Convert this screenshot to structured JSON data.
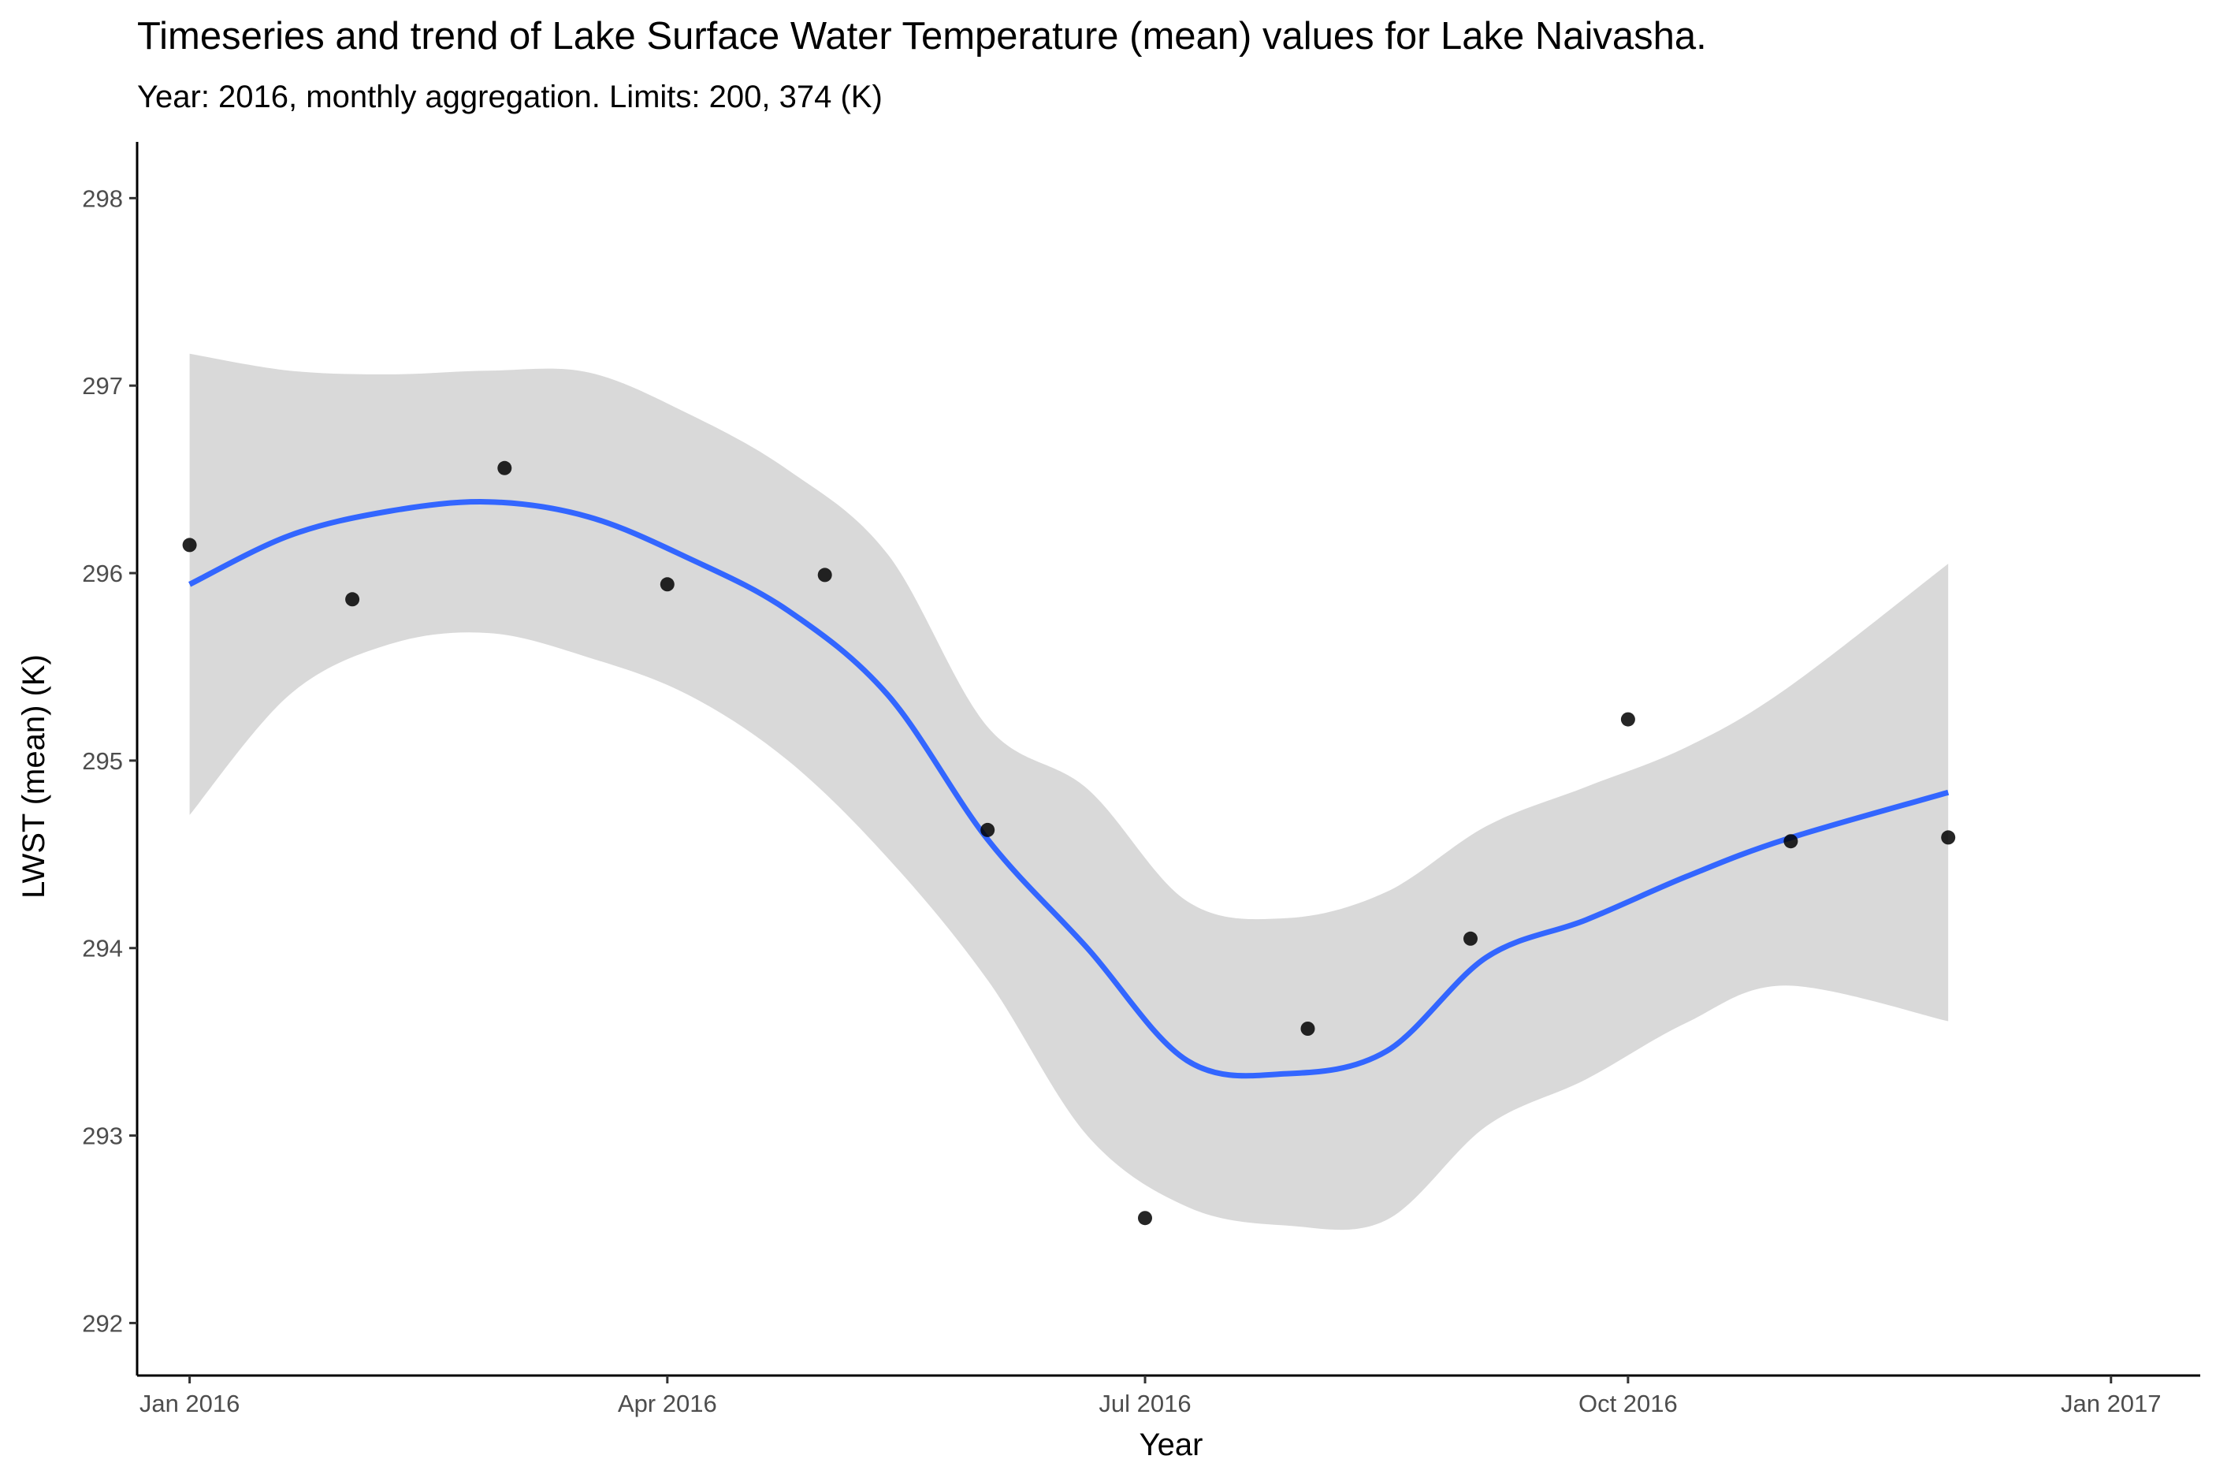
{
  "chart_data": {
    "type": "scatter",
    "title": "Timeseries and trend of Lake Surface Water Temperature (mean) values for Lake Naivasha.",
    "subtitle": "Year: 2016, monthly aggregation. Limits: 200, 374 (K)",
    "xlabel": "Year",
    "ylabel": "LWST (mean) (K)",
    "x_ticks": [
      {
        "date": "2016-01-01",
        "label": "Jan 2016"
      },
      {
        "date": "2016-04-01",
        "label": "Apr 2016"
      },
      {
        "date": "2016-07-01",
        "label": "Jul 2016"
      },
      {
        "date": "2016-10-01",
        "label": "Oct 2016"
      },
      {
        "date": "2017-01-01",
        "label": "Jan 2017"
      }
    ],
    "y_ticks": [
      292,
      293,
      294,
      295,
      296,
      297,
      298
    ],
    "xlim": [
      "2015-12-22",
      "2017-01-18"
    ],
    "ylim": [
      291.72,
      298.3
    ],
    "grid": false,
    "colors": {
      "points": "#000000",
      "trend": "#3366ff",
      "ribbon": "#d9d9d9",
      "axis": "#000000"
    },
    "points": [
      {
        "x": "2016-01-01",
        "y": 296.15
      },
      {
        "x": "2016-02-01",
        "y": 295.86
      },
      {
        "x": "2016-03-01",
        "y": 296.56
      },
      {
        "x": "2016-04-01",
        "y": 295.94
      },
      {
        "x": "2016-05-01",
        "y": 295.99
      },
      {
        "x": "2016-06-01",
        "y": 294.63
      },
      {
        "x": "2016-07-01",
        "y": 292.56
      },
      {
        "x": "2016-08-01",
        "y": 293.57
      },
      {
        "x": "2016-09-01",
        "y": 294.05
      },
      {
        "x": "2016-10-01",
        "y": 295.22
      },
      {
        "x": "2016-11-01",
        "y": 294.57
      },
      {
        "x": "2016-12-01",
        "y": 294.59
      }
    ],
    "trend": {
      "x": [
        "2016-01-01",
        "2016-01-20",
        "2016-02-08",
        "2016-02-27",
        "2016-03-17",
        "2016-04-05",
        "2016-04-24",
        "2016-05-13",
        "2016-06-01",
        "2016-06-20",
        "2016-07-09",
        "2016-07-28",
        "2016-08-16",
        "2016-09-04",
        "2016-09-23",
        "2016-10-12",
        "2016-10-31",
        "2016-12-01"
      ],
      "y": [
        295.94,
        296.2,
        296.33,
        296.38,
        296.3,
        296.08,
        295.8,
        295.35,
        294.58,
        294.0,
        293.4,
        293.33,
        293.45,
        293.95,
        294.15,
        294.38,
        294.58,
        294.83
      ],
      "upper": [
        297.17,
        297.08,
        297.06,
        297.08,
        297.07,
        296.85,
        296.55,
        296.1,
        295.18,
        294.85,
        294.25,
        294.16,
        294.3,
        294.65,
        294.86,
        295.07,
        295.38,
        296.05
      ],
      "lower": [
        294.71,
        295.35,
        295.62,
        295.68,
        295.55,
        295.35,
        295.0,
        294.48,
        293.83,
        293.0,
        292.62,
        292.52,
        292.55,
        293.05,
        293.3,
        293.6,
        293.8,
        293.61
      ]
    }
  }
}
